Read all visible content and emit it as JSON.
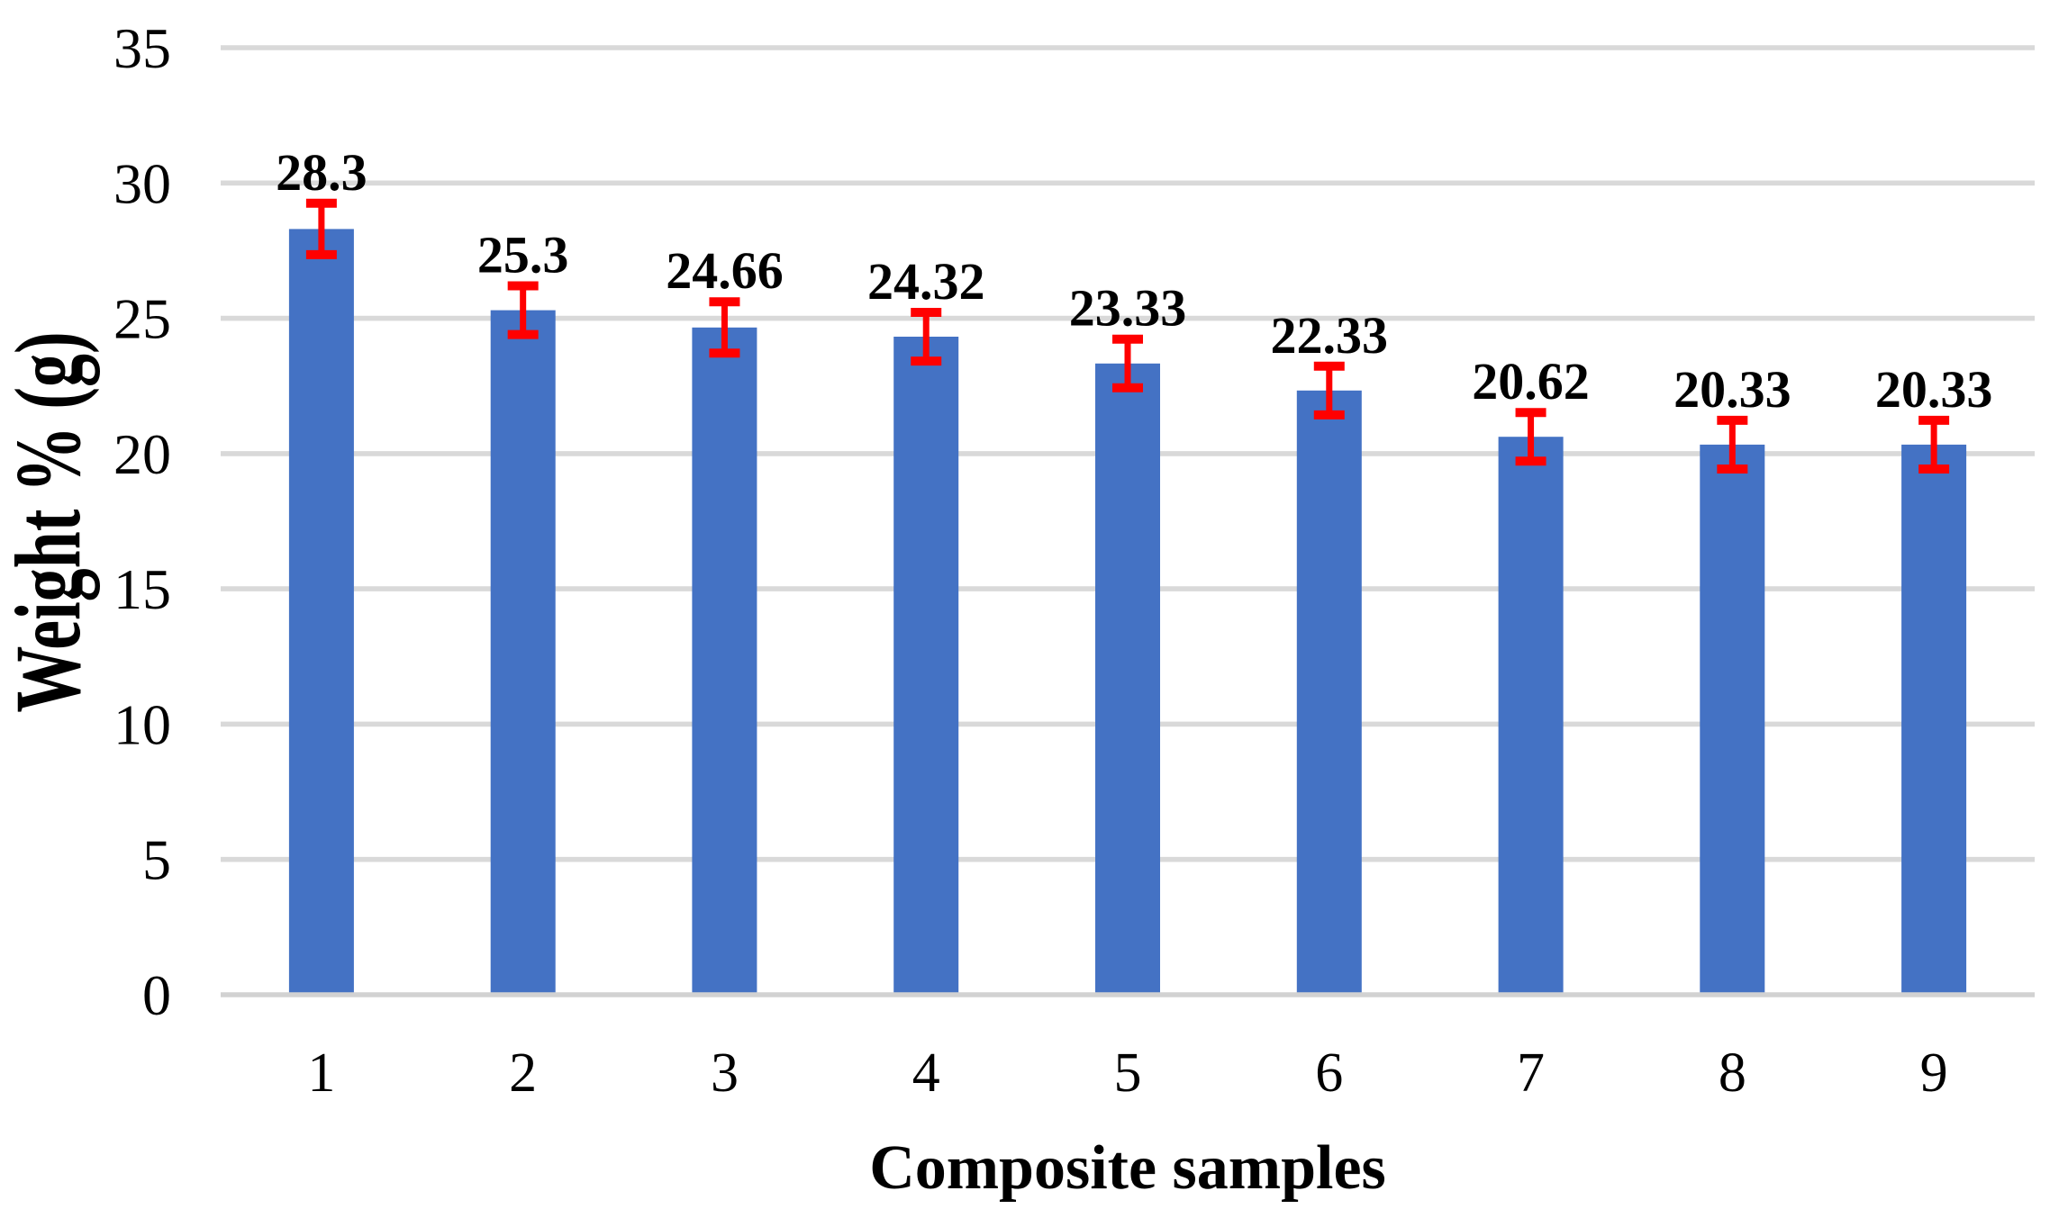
{
  "chart_data": {
    "type": "bar",
    "title": "",
    "categories": [
      "1",
      "2",
      "3",
      "4",
      "5",
      "6",
      "7",
      "8",
      "9"
    ],
    "values": [
      28.3,
      25.3,
      24.66,
      24.32,
      23.33,
      22.33,
      20.62,
      20.33,
      20.33
    ],
    "errors": [
      0.95,
      0.9,
      0.95,
      0.9,
      0.9,
      0.9,
      0.9,
      0.9,
      0.9
    ],
    "data_labels": [
      "28.3",
      "25.3",
      "24.66",
      "24.32",
      "23.33",
      "22.33",
      "20.62",
      "20.33",
      "20.33"
    ],
    "xlabel": "Composite samples",
    "ylabel": "Weight % (g)",
    "ylim": [
      0,
      35
    ],
    "yticks": [
      0,
      5,
      10,
      15,
      20,
      25,
      30,
      35
    ],
    "ytick_labels": [
      "0",
      "5",
      "10",
      "15",
      "20",
      "25",
      "30",
      "35"
    ],
    "grid": true,
    "legend": false,
    "colors": {
      "bar": "#4472C4",
      "error_bar": "#FF0000",
      "gridline": "#D9D9D9",
      "axis_line": "#D2D2D2",
      "text": "#000000",
      "background": "#FFFFFF"
    }
  }
}
